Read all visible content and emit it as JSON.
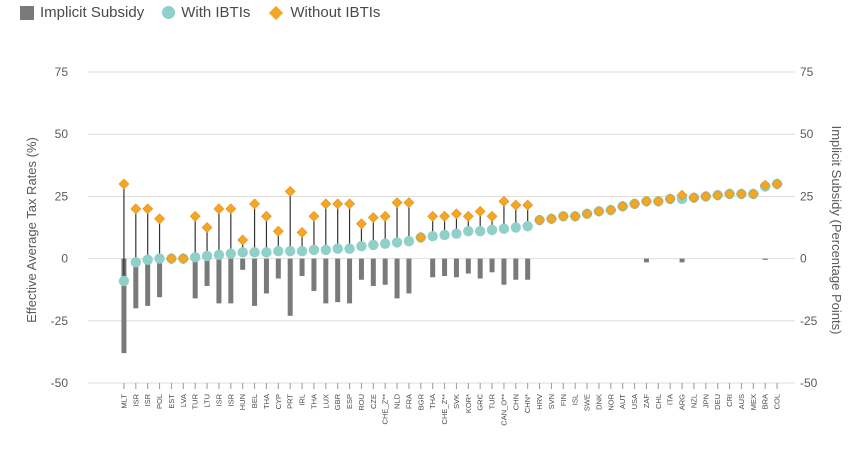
{
  "legend": {
    "subsidy_label": "Implicit Subsidy",
    "with_label": "With IBTIs",
    "without_label": "Without IBTIs"
  },
  "colors": {
    "subsidy": "#7a7a7a",
    "with": "#8fd0c8",
    "without": "#f5a623",
    "stem": "#333333",
    "grid": "#dddddd"
  },
  "chart_data": {
    "type": "bar",
    "ylabel_left": "Effective Average Tax Rates (%)",
    "ylabel_right": "Implicit Subsidy (Percentage Points)",
    "ylim": [
      -50,
      75
    ],
    "yticks": [
      -50,
      -25,
      0,
      25,
      50,
      75
    ],
    "grid": true,
    "legend_position": "top-left",
    "categories": [
      "MLT",
      "ISR",
      "ISR",
      "POL",
      "EST",
      "LVA",
      "TUR",
      "LTU",
      "ISR",
      "ISR",
      "HUN",
      "BEL",
      "THA",
      "CYP",
      "PRT",
      "IRL",
      "THA",
      "LUX",
      "GBR",
      "ESP",
      "ROU",
      "CZE",
      "CHE_Z**",
      "NLD",
      "FRA",
      "BGR",
      "THA",
      "CHE_Z**",
      "SVK",
      "KOR*",
      "GRC",
      "TUR",
      "CAN_O**",
      "CHN",
      "CHN*",
      "HRV",
      "SVN",
      "FIN",
      "ISL",
      "SWE",
      "DNK",
      "NOR",
      "AUT",
      "USA",
      "ZAF",
      "CHL",
      "ITA",
      "ARG",
      "NZL",
      "JPN",
      "DEU",
      "CRI",
      "AUS",
      "MEX",
      "BRA",
      "COL"
    ],
    "series": [
      {
        "name": "With IBTIs",
        "values": [
          -9,
          -1.5,
          -0.5,
          0,
          0,
          0,
          0.5,
          1,
          1.5,
          2,
          2.5,
          2.5,
          2.5,
          3,
          3,
          3,
          3.5,
          3.5,
          4,
          4,
          5,
          5.5,
          6,
          6.5,
          7,
          8.5,
          9,
          9.5,
          10,
          11,
          11,
          11.5,
          12,
          12.5,
          13,
          15.5,
          16,
          17,
          17,
          18,
          19,
          19.5,
          21,
          22,
          23,
          23,
          24,
          24,
          24.5,
          25,
          25.5,
          26,
          26,
          26,
          29,
          30
        ]
      },
      {
        "name": "Without IBTIs",
        "values": [
          30,
          20,
          20,
          16,
          0,
          0,
          17,
          12.5,
          20,
          20,
          7.5,
          22,
          17,
          11,
          27,
          10.5,
          17,
          22,
          22,
          22,
          14,
          16.5,
          17,
          22.5,
          22.5,
          8.5,
          17,
          17,
          18,
          17,
          19,
          17,
          23,
          21.5,
          21.5,
          15.5,
          16,
          17,
          17,
          18,
          19,
          19.5,
          21,
          22,
          23,
          23,
          24,
          25.5,
          24.5,
          25,
          25.5,
          26,
          26,
          26,
          29.5,
          30
        ]
      },
      {
        "name": "Implicit Subsidy",
        "values": [
          -38,
          -20,
          -19,
          -15.5,
          0,
          0,
          -16,
          -11,
          -18,
          -18,
          -4.5,
          -19,
          -14,
          -8,
          -23,
          -7,
          -13,
          -18,
          -17.5,
          -18,
          -8.5,
          -11,
          -10.5,
          -16,
          -14,
          0,
          -7.5,
          -7,
          -7.5,
          -6,
          -8,
          -5.5,
          -10.5,
          -8.5,
          -8.5,
          0,
          0,
          0,
          0,
          0,
          0,
          0,
          0,
          0,
          -1.5,
          0,
          0,
          -1.5,
          0,
          0,
          0,
          0,
          0,
          0,
          -0.5,
          0
        ]
      }
    ]
  }
}
